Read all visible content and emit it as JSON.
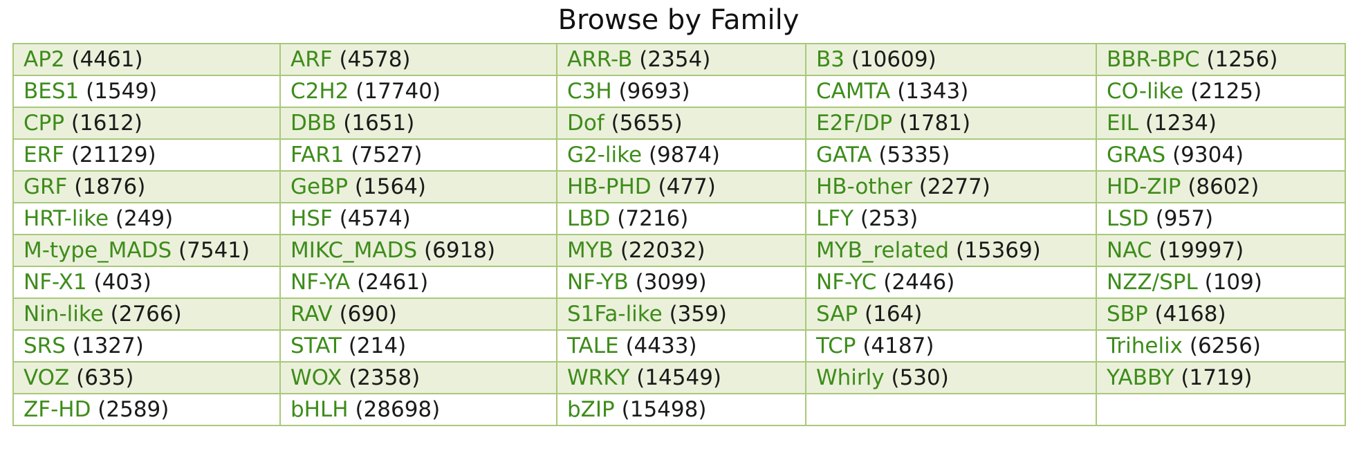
{
  "page": {
    "title": "Browse by Family"
  },
  "colors": {
    "link": "#3d8c1a",
    "stripe": "#ebf0db",
    "border": "#a9c879"
  },
  "rows": [
    [
      {
        "name": "AP2",
        "count": "(4461)"
      },
      {
        "name": "ARF",
        "count": "(4578)"
      },
      {
        "name": "ARR-B",
        "count": "(2354)"
      },
      {
        "name": "B3",
        "count": "(10609)"
      },
      {
        "name": "BBR-BPC",
        "count": "(1256)"
      }
    ],
    [
      {
        "name": "BES1",
        "count": "(1549)"
      },
      {
        "name": "C2H2",
        "count": "(17740)"
      },
      {
        "name": "C3H",
        "count": "(9693)"
      },
      {
        "name": "CAMTA",
        "count": "(1343)"
      },
      {
        "name": "CO-like",
        "count": "(2125)"
      }
    ],
    [
      {
        "name": "CPP",
        "count": "(1612)"
      },
      {
        "name": "DBB",
        "count": "(1651)"
      },
      {
        "name": "Dof",
        "count": "(5655)"
      },
      {
        "name": "E2F/DP",
        "count": "(1781)"
      },
      {
        "name": "EIL",
        "count": "(1234)"
      }
    ],
    [
      {
        "name": "ERF",
        "count": "(21129)"
      },
      {
        "name": "FAR1",
        "count": "(7527)"
      },
      {
        "name": "G2-like",
        "count": "(9874)"
      },
      {
        "name": "GATA",
        "count": "(5335)"
      },
      {
        "name": "GRAS",
        "count": "(9304)"
      }
    ],
    [
      {
        "name": "GRF",
        "count": "(1876)"
      },
      {
        "name": "GeBP",
        "count": "(1564)"
      },
      {
        "name": "HB-PHD",
        "count": "(477)"
      },
      {
        "name": "HB-other",
        "count": "(2277)"
      },
      {
        "name": "HD-ZIP",
        "count": "(8602)"
      }
    ],
    [
      {
        "name": "HRT-like",
        "count": "(249)"
      },
      {
        "name": "HSF",
        "count": "(4574)"
      },
      {
        "name": "LBD",
        "count": "(7216)"
      },
      {
        "name": "LFY",
        "count": "(253)"
      },
      {
        "name": "LSD",
        "count": "(957)"
      }
    ],
    [
      {
        "name": "M-type_MADS",
        "count": "(7541)"
      },
      {
        "name": "MIKC_MADS",
        "count": "(6918)"
      },
      {
        "name": "MYB",
        "count": "(22032)"
      },
      {
        "name": "MYB_related",
        "count": "(15369)"
      },
      {
        "name": "NAC",
        "count": "(19997)"
      }
    ],
    [
      {
        "name": "NF-X1",
        "count": "(403)"
      },
      {
        "name": "NF-YA",
        "count": "(2461)"
      },
      {
        "name": "NF-YB",
        "count": "(3099)"
      },
      {
        "name": "NF-YC",
        "count": "(2446)"
      },
      {
        "name": "NZZ/SPL",
        "count": "(109)"
      }
    ],
    [
      {
        "name": "Nin-like",
        "count": "(2766)"
      },
      {
        "name": "RAV",
        "count": "(690)"
      },
      {
        "name": "S1Fa-like",
        "count": "(359)"
      },
      {
        "name": "SAP",
        "count": "(164)"
      },
      {
        "name": "SBP",
        "count": "(4168)"
      }
    ],
    [
      {
        "name": "SRS",
        "count": "(1327)"
      },
      {
        "name": "STAT",
        "count": "(214)"
      },
      {
        "name": "TALE",
        "count": "(4433)"
      },
      {
        "name": "TCP",
        "count": "(4187)"
      },
      {
        "name": "Trihelix",
        "count": "(6256)"
      }
    ],
    [
      {
        "name": "VOZ",
        "count": "(635)"
      },
      {
        "name": "WOX",
        "count": "(2358)"
      },
      {
        "name": "WRKY",
        "count": "(14549)"
      },
      {
        "name": "Whirly",
        "count": "(530)"
      },
      {
        "name": "YABBY",
        "count": "(1719)"
      }
    ],
    [
      {
        "name": "ZF-HD",
        "count": "(2589)"
      },
      {
        "name": "bHLH",
        "count": "(28698)"
      },
      {
        "name": "bZIP",
        "count": "(15498)"
      },
      {
        "name": "",
        "count": ""
      },
      {
        "name": "",
        "count": ""
      }
    ]
  ]
}
